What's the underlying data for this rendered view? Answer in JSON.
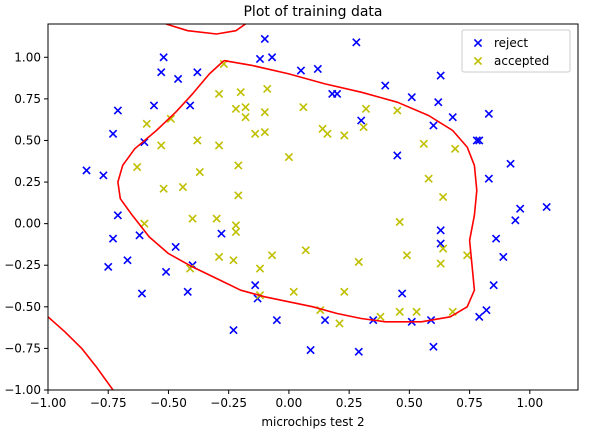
{
  "chart_data": {
    "type": "scatter",
    "title": "Plot of training data",
    "xlabel": "microchips test 2",
    "ylabel": "",
    "xlim": [
      -1.0,
      1.2
    ],
    "ylim": [
      -1.0,
      1.2
    ],
    "xticks": [
      -1.0,
      -0.75,
      -0.5,
      -0.25,
      0.0,
      0.25,
      0.5,
      0.75,
      1.0
    ],
    "yticks": [
      -1.0,
      -0.75,
      -0.5,
      -0.25,
      0.0,
      0.25,
      0.5,
      0.75,
      1.0
    ],
    "xtick_labels": [
      "−1.00",
      "−0.75",
      "−0.50",
      "−0.25",
      "0.00",
      "0.25",
      "0.50",
      "0.75",
      "1.00"
    ],
    "ytick_labels": [
      "−1.00",
      "−0.75",
      "−0.50",
      "−0.25",
      "0.00",
      "0.25",
      "0.50",
      "0.75",
      "1.00"
    ],
    "grid": false,
    "legend_position": "top-right",
    "series": [
      {
        "name": "reject",
        "marker": "x",
        "color": "#0000ff",
        "points": [
          [
            -0.52,
            1.0
          ],
          [
            -0.53,
            0.91
          ],
          [
            -0.46,
            0.87
          ],
          [
            -0.38,
            0.91
          ],
          [
            -0.1,
            1.11
          ],
          [
            -0.12,
            0.99
          ],
          [
            -0.07,
            1.0
          ],
          [
            0.05,
            0.92
          ],
          [
            0.12,
            0.93
          ],
          [
            0.28,
            1.09
          ],
          [
            0.4,
            0.83
          ],
          [
            0.2,
            0.78
          ],
          [
            0.51,
            0.76
          ],
          [
            0.63,
            0.89
          ],
          [
            0.62,
            0.73
          ],
          [
            0.68,
            0.64
          ],
          [
            0.83,
            0.66
          ],
          [
            0.78,
            0.5
          ],
          [
            0.92,
            0.36
          ],
          [
            0.83,
            0.27
          ],
          [
            0.96,
            0.09
          ],
          [
            0.94,
            0.02
          ],
          [
            1.07,
            0.1
          ],
          [
            0.86,
            -0.09
          ],
          [
            0.89,
            -0.2
          ],
          [
            0.85,
            -0.37
          ],
          [
            0.82,
            -0.52
          ],
          [
            0.79,
            -0.56
          ],
          [
            0.63,
            -0.04
          ],
          [
            0.63,
            -0.12
          ],
          [
            0.59,
            -0.58
          ],
          [
            0.51,
            -0.59
          ],
          [
            0.47,
            -0.42
          ],
          [
            0.6,
            -0.74
          ],
          [
            0.29,
            -0.77
          ],
          [
            0.35,
            -0.58
          ],
          [
            0.15,
            -0.58
          ],
          [
            0.09,
            -0.76
          ],
          [
            -0.05,
            -0.58
          ],
          [
            -0.13,
            -0.45
          ],
          [
            -0.14,
            -0.37
          ],
          [
            -0.23,
            -0.64
          ],
          [
            -0.42,
            -0.41
          ],
          [
            -0.4,
            -0.25
          ],
          [
            -0.47,
            -0.14
          ],
          [
            -0.51,
            -0.29
          ],
          [
            -0.61,
            -0.42
          ],
          [
            -0.67,
            -0.22
          ],
          [
            -0.75,
            -0.26
          ],
          [
            -0.73,
            -0.09
          ],
          [
            -0.71,
            0.05
          ],
          [
            -0.62,
            -0.07
          ],
          [
            -0.77,
            0.29
          ],
          [
            -0.84,
            0.32
          ],
          [
            -0.6,
            0.49
          ],
          [
            -0.73,
            0.54
          ],
          [
            -0.71,
            0.68
          ],
          [
            -0.56,
            0.71
          ],
          [
            -0.41,
            0.71
          ],
          [
            0.18,
            0.78
          ],
          [
            0.6,
            0.59
          ],
          [
            0.79,
            0.5
          ],
          [
            0.3,
            0.62
          ],
          [
            -0.28,
            -0.06
          ],
          [
            0.45,
            0.41
          ]
        ]
      },
      {
        "name": "accepted",
        "marker": "x",
        "color": "#bfbf00",
        "points": [
          [
            -0.27,
            0.96
          ],
          [
            -0.29,
            0.78
          ],
          [
            -0.2,
            0.79
          ],
          [
            -0.09,
            0.81
          ],
          [
            -0.22,
            0.69
          ],
          [
            -0.18,
            0.7
          ],
          [
            -0.18,
            0.64
          ],
          [
            -0.1,
            0.67
          ],
          [
            0.06,
            0.7
          ],
          [
            0.14,
            0.57
          ],
          [
            0.16,
            0.54
          ],
          [
            0.23,
            0.53
          ],
          [
            0.31,
            0.58
          ],
          [
            0.32,
            0.69
          ],
          [
            0.45,
            0.68
          ],
          [
            0.56,
            0.48
          ],
          [
            0.69,
            0.45
          ],
          [
            0.58,
            0.27
          ],
          [
            0.64,
            0.16
          ],
          [
            -0.59,
            0.6
          ],
          [
            -0.49,
            0.63
          ],
          [
            -0.53,
            0.47
          ],
          [
            -0.38,
            0.5
          ],
          [
            -0.29,
            0.47
          ],
          [
            -0.14,
            0.54
          ],
          [
            -0.1,
            0.55
          ],
          [
            0.0,
            0.4
          ],
          [
            -0.63,
            0.34
          ],
          [
            -0.37,
            0.31
          ],
          [
            -0.21,
            0.35
          ],
          [
            -0.52,
            0.21
          ],
          [
            -0.44,
            0.22
          ],
          [
            -0.21,
            0.17
          ],
          [
            -0.6,
            0.0
          ],
          [
            -0.4,
            0.03
          ],
          [
            -0.3,
            0.03
          ],
          [
            -0.22,
            -0.01
          ],
          [
            -0.29,
            -0.2
          ],
          [
            -0.41,
            -0.27
          ],
          [
            -0.23,
            -0.22
          ],
          [
            -0.12,
            -0.27
          ],
          [
            -0.07,
            -0.19
          ],
          [
            0.07,
            -0.16
          ],
          [
            0.02,
            -0.41
          ],
          [
            -0.12,
            -0.43
          ],
          [
            0.23,
            -0.41
          ],
          [
            0.29,
            -0.23
          ],
          [
            0.13,
            -0.52
          ],
          [
            0.21,
            -0.6
          ],
          [
            0.38,
            -0.56
          ],
          [
            0.46,
            -0.53
          ],
          [
            0.53,
            -0.53
          ],
          [
            0.68,
            -0.53
          ],
          [
            0.46,
            0.01
          ],
          [
            0.49,
            -0.19
          ],
          [
            0.64,
            -0.15
          ],
          [
            0.63,
            -0.24
          ],
          [
            0.74,
            -0.19
          ],
          [
            -0.22,
            -0.05
          ]
        ]
      }
    ],
    "decision_boundary": {
      "color": "#ff0000",
      "segments": [
        [
          [
            -0.51,
            1.2
          ],
          [
            -0.42,
            1.16
          ],
          [
            -0.3,
            1.14
          ],
          [
            -0.22,
            1.16
          ],
          [
            -0.18,
            1.2
          ]
        ],
        [
          [
            -0.27,
            0.98
          ],
          [
            -0.15,
            0.95
          ],
          [
            0.0,
            0.9
          ],
          [
            0.15,
            0.84
          ],
          [
            0.3,
            0.79
          ],
          [
            0.45,
            0.73
          ],
          [
            0.58,
            0.65
          ],
          [
            0.68,
            0.56
          ],
          [
            0.74,
            0.46
          ],
          [
            0.77,
            0.35
          ],
          [
            0.78,
            0.2
          ],
          [
            0.77,
            0.05
          ],
          [
            0.75,
            -0.1
          ],
          [
            0.76,
            -0.25
          ],
          [
            0.77,
            -0.4
          ],
          [
            0.74,
            -0.5
          ],
          [
            0.67,
            -0.56
          ],
          [
            0.55,
            -0.59
          ],
          [
            0.4,
            -0.59
          ],
          [
            0.3,
            -0.57
          ],
          [
            0.2,
            -0.54
          ],
          [
            0.1,
            -0.5
          ],
          [
            0.0,
            -0.47
          ],
          [
            -0.1,
            -0.44
          ],
          [
            -0.2,
            -0.4
          ],
          [
            -0.3,
            -0.33
          ],
          [
            -0.4,
            -0.26
          ],
          [
            -0.5,
            -0.18
          ],
          [
            -0.58,
            -0.08
          ],
          [
            -0.65,
            0.05
          ],
          [
            -0.7,
            0.15
          ],
          [
            -0.71,
            0.25
          ],
          [
            -0.69,
            0.35
          ],
          [
            -0.64,
            0.45
          ],
          [
            -0.55,
            0.56
          ],
          [
            -0.47,
            0.67
          ],
          [
            -0.4,
            0.78
          ],
          [
            -0.33,
            0.9
          ],
          [
            -0.27,
            0.98
          ]
        ],
        [
          [
            -1.0,
            -0.56
          ],
          [
            -0.93,
            -0.65
          ],
          [
            -0.86,
            -0.75
          ],
          [
            -0.8,
            -0.86
          ],
          [
            -0.76,
            -0.94
          ],
          [
            -0.73,
            -1.0
          ]
        ]
      ]
    }
  }
}
